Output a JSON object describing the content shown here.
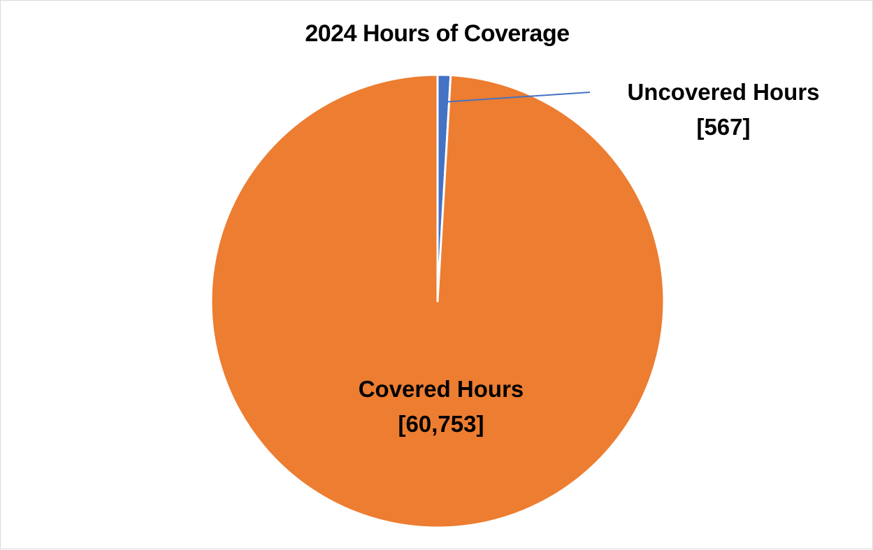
{
  "chart_data": {
    "type": "pie",
    "title": "2024 Hours of Coverage",
    "slices": [
      {
        "name": "Uncovered Hours",
        "value": 567,
        "value_label": "[567]",
        "color": "#4472c4"
      },
      {
        "name": "Covered Hours",
        "value": 60753,
        "value_label": "[60,753]",
        "color": "#ed7d31"
      }
    ],
    "start_angle": "12 o'clock",
    "direction": "clockwise",
    "legend": "none",
    "labels": "data labels with category name and value"
  }
}
